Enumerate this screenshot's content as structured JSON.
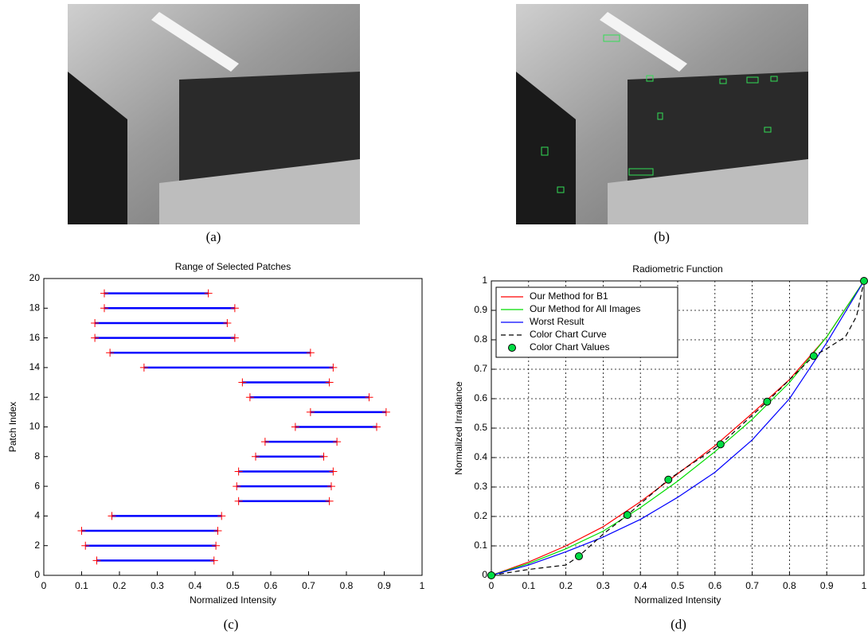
{
  "figure": {
    "captions": [
      "(a)",
      "(b)",
      "(c)",
      "(d)"
    ]
  },
  "chart_data": [
    {
      "type": "range",
      "title": "Range of Selected Patches",
      "x_label": "Normalized Intensity",
      "y_label": "Patch Index",
      "y": [
        1,
        2,
        3,
        4,
        5,
        6,
        7,
        8,
        9,
        10,
        11,
        12,
        13,
        14,
        15,
        16,
        17,
        18,
        19
      ],
      "low": [
        0.14,
        0.11,
        0.1,
        0.18,
        0.515,
        0.51,
        0.515,
        0.56,
        0.585,
        0.665,
        0.705,
        0.545,
        0.525,
        0.265,
        0.175,
        0.135,
        0.135,
        0.16,
        0.16
      ],
      "high": [
        0.45,
        0.455,
        0.46,
        0.47,
        0.755,
        0.76,
        0.765,
        0.74,
        0.775,
        0.88,
        0.905,
        0.86,
        0.755,
        0.765,
        0.705,
        0.505,
        0.485,
        0.505,
        0.435
      ],
      "color": "#0000ff",
      "end_color": "#ff0000",
      "xlim": [
        0,
        1
      ],
      "xticks": [
        0,
        0.1,
        0.2,
        0.3,
        0.4,
        0.5,
        0.6,
        0.7,
        0.8,
        0.9,
        1
      ],
      "ylim": [
        0,
        20
      ],
      "yticks": [
        0,
        2,
        4,
        6,
        8,
        10,
        12,
        14,
        16,
        18,
        20
      ],
      "grid": false
    },
    {
      "type": "line",
      "title": "Radiometric Function",
      "x_label": "Normalized Intensity",
      "y_label": "Normalized Irradiance",
      "series": [
        {
          "name": "Our Method for B1",
          "color": "#ff0000",
          "style": "solid",
          "x": [
            0,
            0.1,
            0.2,
            0.3,
            0.4,
            0.5,
            0.6,
            0.7,
            0.8,
            0.9,
            1
          ],
          "values": [
            0,
            0.045,
            0.1,
            0.165,
            0.25,
            0.345,
            0.44,
            0.55,
            0.665,
            0.81,
            1
          ]
        },
        {
          "name": "Our Method for All Images",
          "color": "#00dd00",
          "style": "solid",
          "x": [
            0,
            0.1,
            0.2,
            0.3,
            0.4,
            0.5,
            0.6,
            0.7,
            0.8,
            0.9,
            1
          ],
          "values": [
            0,
            0.04,
            0.09,
            0.15,
            0.23,
            0.32,
            0.42,
            0.53,
            0.655,
            0.81,
            1
          ]
        },
        {
          "name": "Worst Result",
          "color": "#0000ff",
          "style": "solid",
          "x": [
            0,
            0.1,
            0.2,
            0.3,
            0.4,
            0.5,
            0.6,
            0.7,
            0.8,
            0.9,
            1
          ],
          "values": [
            0,
            0.035,
            0.08,
            0.13,
            0.19,
            0.265,
            0.35,
            0.46,
            0.6,
            0.79,
            1
          ]
        },
        {
          "name": "Color Chart Curve",
          "color": "#000000",
          "style": "dashed",
          "x": [
            0,
            0.1,
            0.2,
            0.235,
            0.3,
            0.365,
            0.475,
            0.615,
            0.74,
            0.865,
            0.9,
            0.95,
            0.98,
            1
          ],
          "values": [
            0,
            0.02,
            0.035,
            0.065,
            0.14,
            0.205,
            0.325,
            0.445,
            0.59,
            0.745,
            0.77,
            0.81,
            0.88,
            1
          ]
        },
        {
          "name": "Color Chart Values",
          "color": "#00dd44",
          "style": "markers",
          "x": [
            0,
            0.235,
            0.365,
            0.475,
            0.615,
            0.74,
            0.865,
            1
          ],
          "values": [
            0,
            0.065,
            0.205,
            0.325,
            0.445,
            0.59,
            0.745,
            1
          ]
        }
      ],
      "xlim": [
        0,
        1
      ],
      "xticks": [
        0,
        0.1,
        0.2,
        0.3,
        0.4,
        0.5,
        0.6,
        0.7,
        0.8,
        0.9,
        1
      ],
      "ylim": [
        0,
        1
      ],
      "yticks": [
        0,
        0.1,
        0.2,
        0.3,
        0.4,
        0.5,
        0.6,
        0.7,
        0.8,
        0.9,
        1
      ],
      "grid": true,
      "legend": "upper-left"
    }
  ]
}
